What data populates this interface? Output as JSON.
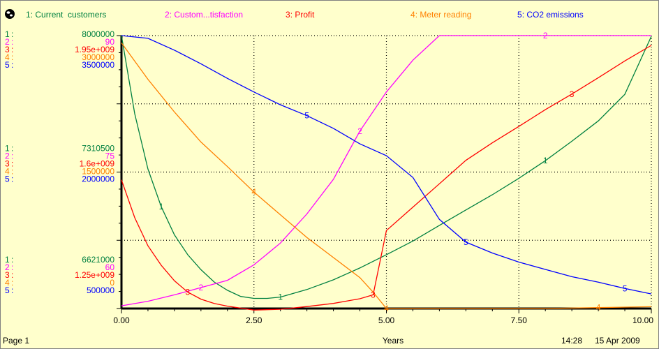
{
  "chart_data": {
    "type": "line",
    "xlabel": "Years",
    "xlim": [
      0,
      10
    ],
    "x_ticks": [
      "0.00",
      "2.50",
      "5.00",
      "7.50",
      "10.00"
    ],
    "grid": true,
    "legend_placement": "top",
    "footer": {
      "left": "Page 1",
      "time": "14:28",
      "date": "15 Apr 2009"
    },
    "series": [
      {
        "id": "1",
        "name": "Current  customers",
        "color": "#008040",
        "axis_labels": [
          "8000000",
          "7310500",
          "6621000"
        ],
        "ylim": [
          6621000,
          8000000
        ],
        "x": [
          0,
          0.25,
          0.5,
          0.75,
          1.0,
          1.25,
          1.5,
          1.75,
          2.0,
          2.25,
          2.5,
          2.75,
          3.0,
          3.5,
          4.0,
          4.5,
          5.0,
          5.5,
          6.0,
          6.5,
          7.0,
          7.5,
          8.0,
          8.5,
          9.0,
          9.5,
          10.0
        ],
        "y": [
          8000000,
          7605000,
          7326000,
          7136000,
          6993000,
          6893000,
          6817000,
          6755000,
          6713000,
          6682000,
          6672000,
          6672000,
          6679000,
          6717000,
          6766000,
          6826000,
          6893000,
          6962000,
          7041000,
          7119000,
          7196000,
          7279000,
          7368000,
          7466000,
          7569000,
          7703000,
          7996000
        ]
      },
      {
        "id": "2",
        "name": "Custom...tisfaction",
        "color": "#ff00ff",
        "axis_labels": [
          "90",
          "75",
          "60"
        ],
        "ylim": [
          60,
          90
        ],
        "x": [
          0,
          0.5,
          1.0,
          1.5,
          2.0,
          2.5,
          3.0,
          3.5,
          4.0,
          4.5,
          5.0,
          5.5,
          6.0,
          7.0,
          8.0,
          9.0,
          10.0
        ],
        "y": [
          60.3,
          60.8,
          61.5,
          62.3,
          63.1,
          64.8,
          67.2,
          70.4,
          74.2,
          79.5,
          83.8,
          87.3,
          90,
          90,
          90,
          90,
          90
        ]
      },
      {
        "id": "3",
        "name": "Profit",
        "color": "#ff0000",
        "axis_labels": [
          "1.95e+009",
          "1.6e+009",
          "1.25e+009"
        ],
        "ylim": [
          1250000000,
          1950000000
        ],
        "x": [
          0,
          0.25,
          0.5,
          0.75,
          1.0,
          1.25,
          1.5,
          1.75,
          2.0,
          2.5,
          3.0,
          3.5,
          4.0,
          4.5,
          4.75,
          5.0,
          5.5,
          6.0,
          6.5,
          7.0,
          7.5,
          8.0,
          8.5,
          9.0,
          9.5,
          10.0
        ],
        "y": [
          1580000000,
          1483000000,
          1411000000,
          1361000000,
          1321000000,
          1292000000,
          1274000000,
          1263000000,
          1256000000,
          1246000000,
          1248000000,
          1255000000,
          1263000000,
          1275000000,
          1285000000,
          1450000000,
          1510000000,
          1570000000,
          1630000000,
          1675000000,
          1717000000,
          1760000000,
          1800000000,
          1842000000,
          1885000000,
          1925000000
        ]
      },
      {
        "id": "4",
        "name": "Meter reading",
        "color": "#ff8000",
        "axis_labels": [
          "3000000",
          "1500000",
          "0"
        ],
        "ylim": [
          0,
          3000000
        ],
        "x": [
          0,
          0.5,
          1.0,
          1.5,
          2.0,
          2.5,
          3.0,
          3.5,
          4.0,
          4.5,
          4.75,
          5.0,
          6.0,
          7.0,
          8.0,
          9.0,
          10.0
        ],
        "y": [
          2920000,
          2520000,
          2160000,
          1830000,
          1560000,
          1280000,
          1030000,
          780000,
          560000,
          340000,
          180000,
          0,
          0,
          0,
          0,
          10000,
          20000
        ]
      },
      {
        "id": "5",
        "name": "CO2 emissions",
        "color": "#0000ff",
        "axis_labels": [
          "3500000",
          "2000000",
          "500000"
        ],
        "ylim": [
          500000,
          3500000
        ],
        "x": [
          0,
          0.5,
          1.0,
          1.5,
          2.0,
          2.5,
          3.0,
          3.5,
          4.0,
          4.5,
          5.0,
          5.5,
          6.0,
          6.5,
          7.0,
          7.5,
          8.0,
          8.5,
          9.0,
          9.5,
          10.0
        ],
        "y": [
          3500000,
          3470000,
          3340000,
          3190000,
          3030000,
          2880000,
          2740000,
          2620000,
          2480000,
          2310000,
          2180000,
          1940000,
          1480000,
          1230000,
          1110000,
          1010000,
          930000,
          850000,
          790000,
          720000,
          660000
        ]
      }
    ]
  }
}
